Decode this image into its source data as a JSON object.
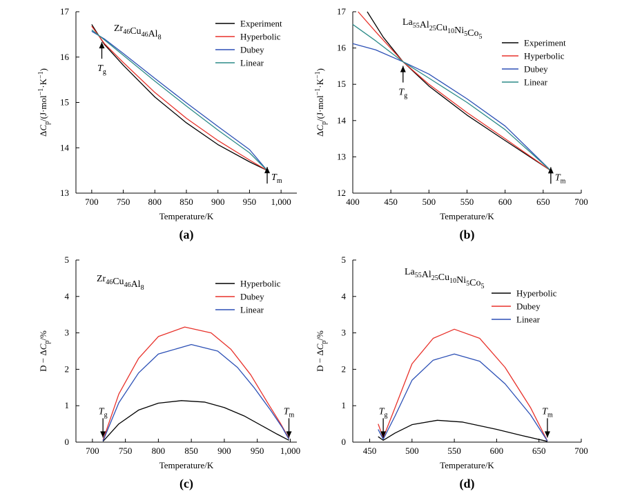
{
  "chart_data": [
    {
      "type": "line",
      "panel": "(a)",
      "composition": {
        "parts": [
          [
            "Zr",
            "46"
          ],
          [
            "Cu",
            "46"
          ],
          [
            "Al",
            "8"
          ]
        ]
      },
      "xlabel": "Temperature/K",
      "ylabel": {
        "pre": "ΔC",
        "sub": "p",
        "post": "/(J·mol",
        "sup1": "−1",
        "mid": "·K",
        "sup2": "−1",
        "end": ")"
      },
      "xlim": [
        675,
        1025
      ],
      "ylim": [
        13,
        17
      ],
      "xticks": [
        700,
        750,
        800,
        850,
        900,
        950,
        1000
      ],
      "xtick_labels": [
        "700",
        "750",
        "800",
        "850",
        "900",
        "950",
        "1,000"
      ],
      "yticks": [
        13,
        14,
        15,
        16,
        17
      ],
      "ytick_labels": [
        "13",
        "14",
        "15",
        "16",
        "17"
      ],
      "legend": [
        "Experiment",
        "Hyperbolic",
        "Dubey",
        "Linear"
      ],
      "series": [
        {
          "name": "Experiment",
          "color": "#000000",
          "x": [
            700,
            720,
            750,
            800,
            850,
            900,
            950,
            978
          ],
          "y": [
            16.72,
            16.28,
            15.82,
            15.12,
            14.55,
            14.07,
            13.69,
            13.5
          ]
        },
        {
          "name": "Hyperbolic",
          "color": "#e8312a",
          "x": [
            700,
            720,
            750,
            800,
            850,
            900,
            950,
            978
          ],
          "y": [
            16.68,
            16.3,
            15.88,
            15.22,
            14.65,
            14.16,
            13.73,
            13.5
          ]
        },
        {
          "name": "Dubey",
          "color": "#2b4fb5",
          "x": [
            700,
            720,
            750,
            800,
            850,
            900,
            950,
            978
          ],
          "y": [
            16.57,
            16.4,
            16.08,
            15.53,
            14.99,
            14.47,
            13.96,
            13.5
          ]
        },
        {
          "name": "Linear",
          "color": "#2a8a87",
          "x": [
            700,
            720,
            750,
            800,
            850,
            900,
            950,
            978
          ],
          "y": [
            16.6,
            16.38,
            16.04,
            15.47,
            14.92,
            14.39,
            13.89,
            13.5
          ]
        }
      ],
      "annotations": {
        "tg": {
          "base": "T",
          "sub": "g",
          "x": 716,
          "y": 16.42
        },
        "tm": {
          "base": "T",
          "sub": "m",
          "x": 978,
          "y": 13.5
        }
      }
    },
    {
      "type": "line",
      "panel": "(b)",
      "composition": {
        "parts": [
          [
            "La",
            "55"
          ],
          [
            "Al",
            "25"
          ],
          [
            "Cu",
            "10"
          ],
          [
            "Ni",
            "5"
          ],
          [
            "Co",
            "5"
          ]
        ]
      },
      "xlabel": "Temperature/K",
      "ylabel": {
        "pre": "ΔC",
        "sub": "p",
        "post": "/(J·mol",
        "sup1": "−1",
        "mid": "·K",
        "sup2": "−1",
        "end": ")"
      },
      "xlim": [
        400,
        700
      ],
      "ylim": [
        12,
        17
      ],
      "xticks": [
        400,
        450,
        500,
        550,
        600,
        650,
        700
      ],
      "xtick_labels": [
        "400",
        "450",
        "500",
        "550",
        "600",
        "650",
        "700"
      ],
      "yticks": [
        12,
        13,
        14,
        15,
        16,
        17
      ],
      "ytick_labels": [
        "12",
        "13",
        "14",
        "15",
        "16",
        "17"
      ],
      "legend": [
        "Experiment",
        "Hyperbolic",
        "Dubey",
        "Linear"
      ],
      "series": [
        {
          "name": "Experiment",
          "color": "#000000",
          "x": [
            419,
            440,
            466,
            500,
            550,
            600,
            660
          ],
          "y": [
            17.0,
            16.3,
            15.62,
            14.95,
            14.15,
            13.45,
            12.62
          ]
        },
        {
          "name": "Hyperbolic",
          "color": "#e8312a",
          "x": [
            407,
            430,
            466,
            500,
            550,
            600,
            660
          ],
          "y": [
            17.0,
            16.45,
            15.62,
            15.0,
            14.22,
            13.5,
            12.62
          ]
        },
        {
          "name": "Dubey",
          "color": "#2b4fb5",
          "x": [
            400,
            430,
            466,
            500,
            550,
            600,
            660
          ],
          "y": [
            16.12,
            15.95,
            15.62,
            15.28,
            14.6,
            13.85,
            12.62
          ]
        },
        {
          "name": "Linear",
          "color": "#2a8a87",
          "x": [
            400,
            430,
            466,
            500,
            550,
            600,
            660
          ],
          "y": [
            16.65,
            16.2,
            15.62,
            15.17,
            14.5,
            13.75,
            12.62
          ]
        }
      ],
      "annotations": {
        "tg": {
          "base": "T",
          "sub": "g",
          "x": 466,
          "y": 15.62
        },
        "tm": {
          "base": "T",
          "sub": "m",
          "x": 660,
          "y": 12.62
        }
      }
    },
    {
      "type": "line",
      "panel": "(c)",
      "composition": {
        "parts": [
          [
            "Zr",
            "46"
          ],
          [
            "Cu",
            "46"
          ],
          [
            "Al",
            "8"
          ]
        ]
      },
      "xlabel": "Temperature/K",
      "ylabel": {
        "pre": "D − ΔC",
        "sub": "p",
        "post": "/%"
      },
      "xlim": [
        675,
        1010
      ],
      "ylim": [
        0,
        5
      ],
      "xticks": [
        700,
        750,
        800,
        850,
        900,
        950,
        1000
      ],
      "xtick_labels": [
        "700",
        "750",
        "800",
        "850",
        "900",
        "950",
        "1,000"
      ],
      "yticks": [
        0,
        1,
        2,
        3,
        4,
        5
      ],
      "ytick_labels": [
        "0",
        "1",
        "2",
        "3",
        "4",
        "5"
      ],
      "legend": [
        "Hyperbolic",
        "Dubey",
        "Linear"
      ],
      "series": [
        {
          "name": "Hyperbolic",
          "color": "#000000",
          "x": [
            716,
            740,
            770,
            800,
            835,
            870,
            900,
            930,
            960,
            980,
            998
          ],
          "y": [
            0.02,
            0.5,
            0.88,
            1.07,
            1.14,
            1.1,
            0.95,
            0.72,
            0.42,
            0.22,
            0.05
          ]
        },
        {
          "name": "Dubey",
          "color": "#e8312a",
          "x": [
            716,
            740,
            770,
            800,
            840,
            880,
            910,
            940,
            965,
            985,
            998
          ],
          "y": [
            0.05,
            1.32,
            2.3,
            2.9,
            3.16,
            3.0,
            2.55,
            1.85,
            1.1,
            0.52,
            0.1
          ]
        },
        {
          "name": "Linear",
          "color": "#2b4fb5",
          "x": [
            716,
            740,
            770,
            800,
            850,
            890,
            920,
            945,
            970,
            988,
            998
          ],
          "y": [
            0.03,
            1.08,
            1.9,
            2.42,
            2.68,
            2.5,
            2.05,
            1.5,
            0.88,
            0.4,
            0.08
          ]
        }
      ],
      "annotations": {
        "tg": {
          "base": "T",
          "sub": "g",
          "x": 716,
          "y": 0.05
        },
        "tm": {
          "base": "T",
          "sub": "m",
          "x": 998,
          "y": 0.05
        }
      }
    },
    {
      "type": "line",
      "panel": "(d)",
      "composition": {
        "parts": [
          [
            "La",
            "55"
          ],
          [
            "Al",
            "25"
          ],
          [
            "Cu",
            "10"
          ],
          [
            "Ni",
            "5"
          ],
          [
            "Co",
            "5"
          ]
        ]
      },
      "xlabel": "Temperature/K",
      "ylabel": {
        "pre": "D − ΔC",
        "sub": "p",
        "post": "/%"
      },
      "xlim": [
        430,
        700
      ],
      "ylim": [
        0,
        5
      ],
      "xticks": [
        450,
        500,
        550,
        600,
        650,
        700
      ],
      "xtick_labels": [
        "450",
        "500",
        "550",
        "600",
        "650",
        "700"
      ],
      "yticks": [
        0,
        1,
        2,
        3,
        4,
        5
      ],
      "ytick_labels": [
        "0",
        "1",
        "2",
        "3",
        "4",
        "5"
      ],
      "legend": [
        "Hyperbolic",
        "Dubey",
        "Linear"
      ],
      "series": [
        {
          "name": "Hyperbolic",
          "color": "#000000",
          "x": [
            460,
            466,
            480,
            500,
            530,
            560,
            600,
            630,
            660
          ],
          "y": [
            0.15,
            0.05,
            0.25,
            0.48,
            0.6,
            0.55,
            0.35,
            0.18,
            0.02
          ]
        },
        {
          "name": "Dubey",
          "color": "#e8312a",
          "x": [
            460,
            466,
            480,
            500,
            525,
            550,
            580,
            610,
            640,
            660
          ],
          "y": [
            0.5,
            0.12,
            0.95,
            2.15,
            2.85,
            3.1,
            2.85,
            2.05,
            0.95,
            0.03
          ]
        },
        {
          "name": "Linear",
          "color": "#2b4fb5",
          "x": [
            460,
            466,
            480,
            500,
            525,
            550,
            580,
            610,
            640,
            660
          ],
          "y": [
            0.35,
            0.08,
            0.72,
            1.7,
            2.25,
            2.42,
            2.22,
            1.6,
            0.75,
            0.03
          ]
        }
      ],
      "annotations": {
        "tg": {
          "base": "T",
          "sub": "g",
          "x": 466,
          "y": 0.05
        },
        "tm": {
          "base": "T",
          "sub": "m",
          "x": 660,
          "y": 0.05
        }
      }
    }
  ]
}
